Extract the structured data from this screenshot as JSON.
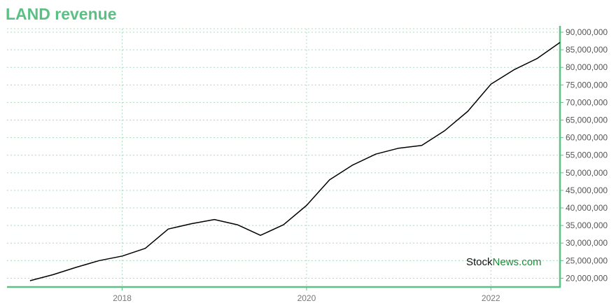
{
  "title": "LAND revenue",
  "watermark": {
    "part1": "Stock",
    "part2": "News.com"
  },
  "colors": {
    "accent": "#5cbf83",
    "line": "#000000",
    "grid": "#a9dcc0",
    "watermark_green": "#1f8a3c"
  },
  "chart_data": {
    "type": "line",
    "title": "LAND revenue",
    "xlabel": "",
    "ylabel": "",
    "x_ticks": [
      "2018",
      "2020",
      "2022"
    ],
    "x_tick_values": [
      2018.0,
      2020.0,
      2022.0
    ],
    "xlim": [
      2016.75,
      2022.75
    ],
    "ylim": [
      17500000,
      91000000
    ],
    "y_ticks": [
      20000000,
      25000000,
      30000000,
      35000000,
      40000000,
      45000000,
      50000000,
      55000000,
      60000000,
      65000000,
      70000000,
      75000000,
      80000000,
      85000000,
      90000000
    ],
    "y_tick_labels": [
      "20,000,000",
      "25,000,000",
      "30,000,000",
      "35,000,000",
      "40,000,000",
      "45,000,000",
      "50,000,000",
      "55,000,000",
      "60,000,000",
      "65,000,000",
      "70,000,000",
      "75,000,000",
      "80,000,000",
      "85,000,000",
      "90,000,000"
    ],
    "grid": true,
    "y_axis_side": "right",
    "series": [
      {
        "x": [
          2017.0,
          2017.25,
          2017.5,
          2017.75,
          2018.0,
          2018.25,
          2018.5,
          2018.75,
          2019.0,
          2019.25,
          2019.5,
          2019.75,
          2020.0,
          2020.25,
          2020.5,
          2020.75,
          2021.0,
          2021.25,
          2021.5,
          2021.75,
          2022.0,
          2022.25,
          2022.5,
          2022.75
        ],
        "values": [
          19300000,
          21000000,
          23100000,
          25000000,
          26300000,
          28500000,
          34000000,
          35500000,
          36700000,
          35200000,
          32200000,
          35200000,
          40700000,
          48000000,
          52200000,
          55300000,
          57000000,
          57800000,
          62000000,
          67500000,
          75200000,
          79300000,
          82500000,
          87100000
        ]
      }
    ]
  }
}
